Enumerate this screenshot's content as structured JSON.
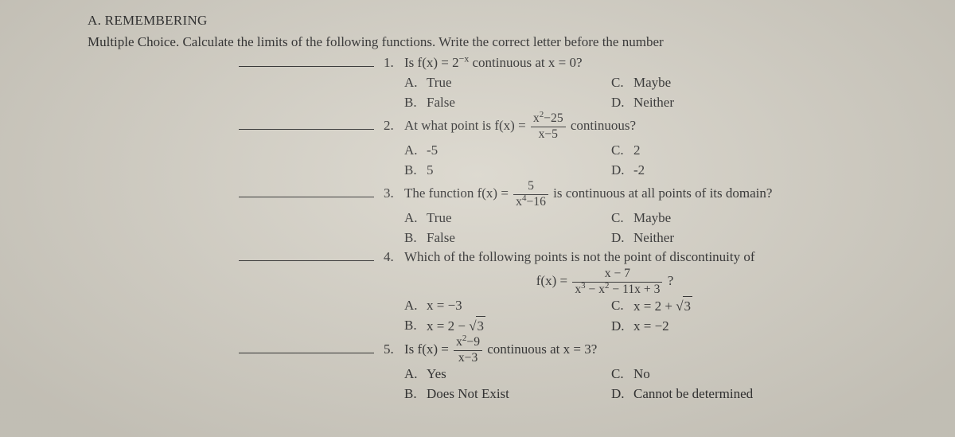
{
  "section": "A.  REMEMBERING",
  "instructions": "Multiple Choice. Calculate the limits of the following functions. Write the correct letter before the number",
  "q1": {
    "num": "1.",
    "text_a": "Is ",
    "fn": "f(x) = 2",
    "exp": "−x",
    "text_b": " continuous at x = 0?",
    "A": "True",
    "B": "False",
    "C": "Maybe",
    "D": "Neither"
  },
  "q2": {
    "num": "2.",
    "text_a": "At what point is ",
    "fn": "f(x) = ",
    "frac_num_a": "x",
    "frac_num_exp": "2",
    "frac_num_b": "−25",
    "frac_den": "x−5",
    "text_b": " continuous?",
    "A": "-5",
    "B": "5",
    "C": "2",
    "D": "-2"
  },
  "q3": {
    "num": "3.",
    "text_a": "The function ",
    "fn": "f(x) = ",
    "frac_num": "5",
    "frac_den_a": "x",
    "frac_den_exp": "4",
    "frac_den_b": "−16",
    "text_b": " is continuous at all points of its domain?",
    "A": "True",
    "B": "False",
    "C": "Maybe",
    "D": "Neither"
  },
  "q4": {
    "num": "4.",
    "text": "Which of the following points is not the point of discontinuity of",
    "eq_lhs": "f(x) = ",
    "eq_num": "x − 7",
    "eq_den_a": "x",
    "eq_den_e1": "3",
    "eq_den_b": " − x",
    "eq_den_e2": "2",
    "eq_den_c": " − 11x + 3",
    "eq_q": " ?",
    "A_pre": "x = −3",
    "B_pre": "x = 2 − ",
    "B_rad": "3",
    "C_pre": "x = 2 + ",
    "C_rad": "3",
    "D_pre": "x = −2"
  },
  "q5": {
    "num": "5.",
    "text_a": "Is ",
    "fn": "f(x) = ",
    "frac_num_a": "x",
    "frac_num_exp": "2",
    "frac_num_b": "−9",
    "frac_den": "x−3",
    "text_b": " continuous at x = 3?",
    "A": "Yes",
    "B": "Does Not Exist",
    "C": "No",
    "D": "Cannot be determined"
  },
  "labels": {
    "A": "A.",
    "B": "B.",
    "C": "C.",
    "D": "D."
  }
}
